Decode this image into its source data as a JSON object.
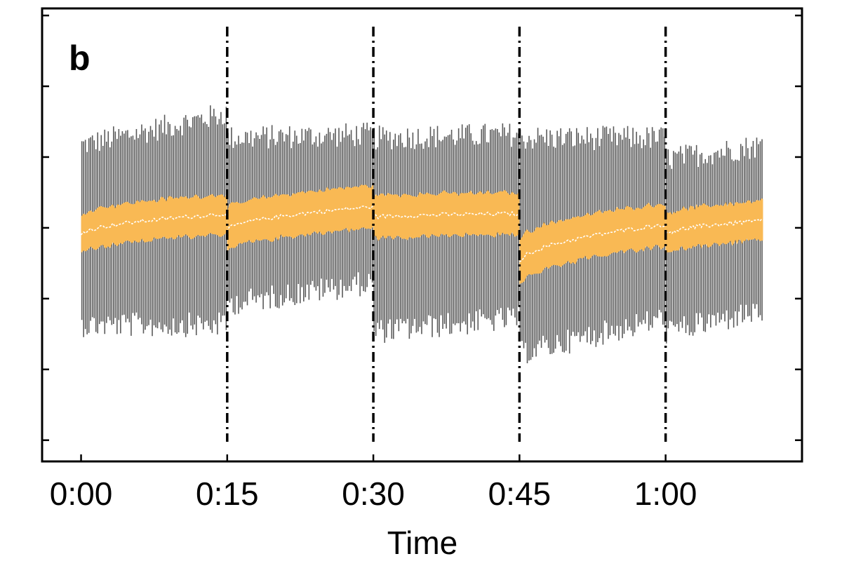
{
  "chart_data": {
    "type": "line",
    "title": "",
    "panel_label": "b",
    "xlabel": "Time",
    "ylabel": "",
    "x_ticks": [
      "0:00",
      "0:15",
      "0:30",
      "0:45",
      "1:00"
    ],
    "x_tick_minutes": [
      0,
      15,
      30,
      45,
      60
    ],
    "xlim_minutes": [
      -4,
      74
    ],
    "ylim": [
      0,
      6.4
    ],
    "y_tick_values": [
      0.3,
      1.3,
      2.3,
      3.3,
      4.3,
      5.3,
      6.3
    ],
    "y_tick_labels_shown": false,
    "grid": false,
    "legend": "none",
    "vertical_markers_minutes": [
      15,
      30,
      45,
      60
    ],
    "series": [
      {
        "kind": "error_bars",
        "color": "#5a5a5a",
        "segments": [
          {
            "x_start": 0,
            "x_end": 15,
            "upper_start": 4.4,
            "upper_end": 4.85,
            "lower_start": 2.0,
            "lower_end": 2.0
          },
          {
            "x_start": 15,
            "x_end": 30,
            "upper_start": 4.5,
            "upper_end": 4.55,
            "lower_start": 2.3,
            "lower_end": 2.6
          },
          {
            "x_start": 30,
            "x_end": 45,
            "upper_start": 4.5,
            "upper_end": 4.55,
            "lower_start": 1.9,
            "lower_end": 2.1
          },
          {
            "x_start": 45,
            "x_end": 60,
            "upper_start": 4.5,
            "upper_end": 4.5,
            "lower_start": 1.6,
            "lower_end": 2.1
          },
          {
            "x_start": 60,
            "x_end": 70,
            "upper_start": 4.2,
            "upper_end": 4.4,
            "lower_start": 1.9,
            "lower_end": 2.2
          }
        ]
      },
      {
        "kind": "band",
        "color": "#f9b954",
        "segments": [
          {
            "x_start": 0,
            "x_end": 15,
            "mean_start": 3.2,
            "mean_end": 3.5,
            "half_width_start": 0.28,
            "half_width_end": 0.28
          },
          {
            "x_start": 15,
            "x_end": 30,
            "mean_start": 3.25,
            "mean_end": 3.6,
            "half_width_start": 0.3,
            "half_width_end": 0.3
          },
          {
            "x_start": 30,
            "x_end": 45,
            "mean_start": 3.45,
            "mean_end": 3.5,
            "half_width_start": 0.3,
            "half_width_end": 0.3
          },
          {
            "x_start": 45,
            "x_end": 60,
            "mean_start": 2.8,
            "mean_end": 3.35,
            "half_width_start": 0.32,
            "half_width_end": 0.3
          },
          {
            "x_start": 60,
            "x_end": 70,
            "mean_start": 3.2,
            "mean_end": 3.4,
            "half_width_start": 0.28,
            "half_width_end": 0.28
          }
        ]
      }
    ]
  }
}
